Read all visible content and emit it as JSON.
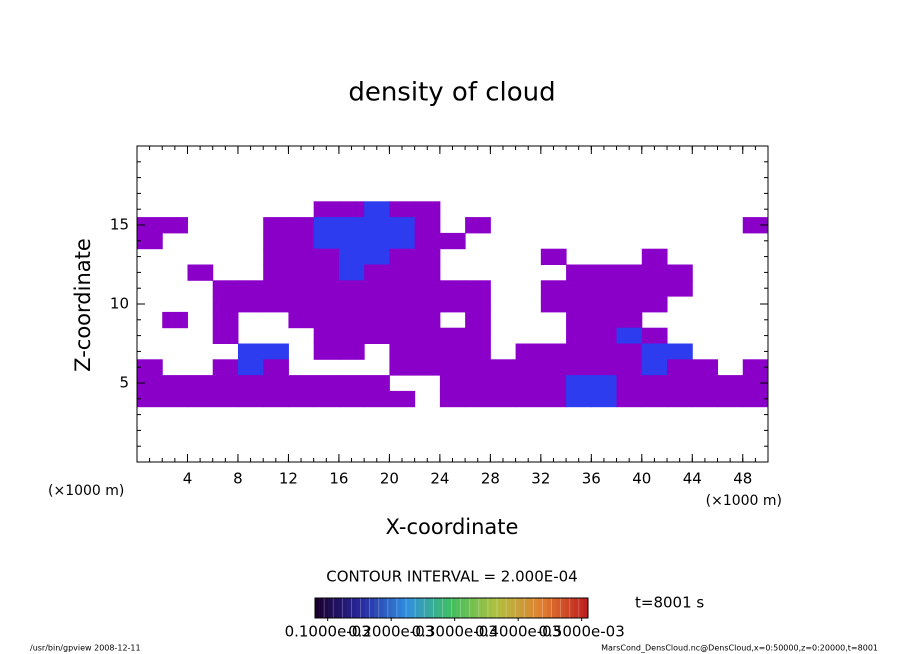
{
  "chart_data": {
    "type": "contour",
    "title": "density of cloud",
    "x_label": "X-coordinate",
    "y_label": "Z-coordinate",
    "x_unit": "(×1000 m)",
    "y_unit": "(×1000 m)",
    "contour_interval": "CONTOUR INTERVAL = 2.000E-04",
    "time_label": "t=8001 s",
    "footer_left": "/usr/bin/gpview  2008-12-11",
    "footer_right": "MarsCond_DensCloud.nc@DensCloud,x=0:50000,z=0:20000,t=8001",
    "xlim": [
      0,
      50
    ],
    "ylim": [
      0,
      20
    ],
    "xticks": [
      4,
      8,
      12,
      16,
      20,
      24,
      28,
      32,
      36,
      40,
      44,
      48
    ],
    "yticks": [
      5,
      10,
      15
    ],
    "minor_step": 1,
    "colorbar_lim": [
      8e-05,
      0.00051
    ],
    "colorbar_ticks": [
      {
        "value": 0.0001,
        "label": "0.1000e-03"
      },
      {
        "value": 0.0002,
        "label": "0.2000e-03"
      },
      {
        "value": 0.0003,
        "label": "0.3000e-03"
      },
      {
        "value": 0.0004,
        "label": "0.4000e-03"
      },
      {
        "value": 0.0005,
        "label": "0.5000e-03"
      }
    ],
    "colorbar_colors": [
      "#1a0030",
      "#2a2aa0",
      "#2f8fe0",
      "#40c060",
      "#b0c040",
      "#e08030",
      "#c02020"
    ],
    "level_colors": [
      "#8a00c8",
      "#2e3cf0"
    ],
    "field": {
      "x": [
        1,
        3,
        5,
        7,
        9,
        11,
        13,
        15,
        17,
        19,
        21,
        23,
        25,
        27,
        29,
        31,
        33,
        35,
        37,
        39,
        41,
        43,
        45,
        47,
        49
      ],
      "z": [
        16,
        15,
        14,
        13,
        12,
        11,
        10,
        9,
        8,
        7,
        6,
        5,
        4
      ],
      "values": [
        [
          0,
          0,
          0,
          0,
          0,
          0,
          0,
          0.0001,
          0.0001,
          0.0002,
          0.0001,
          0.0001,
          0,
          0,
          0,
          0,
          0,
          0,
          0,
          0,
          0,
          0,
          0,
          0,
          0
        ],
        [
          0.0001,
          0.0001,
          0,
          0,
          0,
          0.0001,
          0.0001,
          0.0002,
          0.0002,
          0.0002,
          0.0002,
          0.0001,
          0,
          0.0001,
          0,
          0,
          0,
          0,
          0,
          0,
          0,
          0,
          0,
          0,
          0.0001
        ],
        [
          0.0001,
          0,
          0,
          0,
          0,
          0.0001,
          0.0001,
          0.0002,
          0.0002,
          0.0002,
          0.0002,
          0.0001,
          0.0001,
          0,
          0,
          0,
          0,
          0,
          0,
          0,
          0,
          0,
          0,
          0,
          0
        ],
        [
          0,
          0,
          0,
          0,
          0,
          0.0001,
          0.0001,
          0.0001,
          0.0002,
          0.0002,
          0.0001,
          0.0001,
          0,
          0,
          0,
          0,
          0.0001,
          0,
          0,
          0,
          0.0001,
          0,
          0,
          0,
          0
        ],
        [
          0,
          0,
          0.0001,
          0,
          0,
          0.0001,
          0.0001,
          0.0001,
          0.0002,
          0.0001,
          0.0001,
          0.0001,
          0,
          0,
          0,
          0,
          0,
          0.0001,
          0.0001,
          0.0001,
          0.0001,
          0.0001,
          0,
          0,
          0
        ],
        [
          0,
          0,
          0,
          0.0001,
          0.0001,
          0.0001,
          0.0001,
          0.0001,
          0.0001,
          0.0001,
          0.0001,
          0.0001,
          0.0001,
          0.0001,
          0,
          0,
          0.0001,
          0.0001,
          0.0001,
          0.0001,
          0.0001,
          0.0001,
          0,
          0,
          0
        ],
        [
          0,
          0,
          0,
          0.0001,
          0.0001,
          0.0001,
          0.0001,
          0.0001,
          0.0001,
          0.0001,
          0.0001,
          0.0001,
          0.0001,
          0.0001,
          0,
          0,
          0.0001,
          0.0001,
          0.0001,
          0.0001,
          0.0001,
          0,
          0,
          0,
          0
        ],
        [
          0,
          0.0001,
          0,
          0.0001,
          0,
          0,
          0.0001,
          0.0001,
          0.0001,
          0.0001,
          0.0001,
          0.0001,
          0,
          0.0001,
          0,
          0,
          0,
          0.0001,
          0.0001,
          0.0001,
          0,
          0,
          0,
          0,
          0
        ],
        [
          0,
          0,
          0,
          0.0001,
          0,
          0,
          0,
          0.0001,
          0.0001,
          0.0001,
          0.0001,
          0.0001,
          0.0001,
          0.0001,
          0,
          0,
          0,
          0.0001,
          0.0001,
          0.0002,
          0.0001,
          0,
          0,
          0,
          0
        ],
        [
          0,
          0,
          0,
          0,
          0.0002,
          0.0002,
          0,
          0.0001,
          0.0001,
          0,
          0.0001,
          0.0001,
          0.0001,
          0.0001,
          0,
          0.0001,
          0.0001,
          0.0001,
          0.0001,
          0.0001,
          0.0002,
          0.0002,
          0,
          0,
          0
        ],
        [
          0.0001,
          0,
          0,
          0.0001,
          0.0002,
          0.0001,
          0,
          0,
          0,
          0,
          0.0001,
          0.0001,
          0.0001,
          0.0001,
          0.0001,
          0.0001,
          0.0001,
          0.0001,
          0.0001,
          0.0001,
          0.0002,
          0.0001,
          0.0001,
          0,
          0.0001
        ],
        [
          0.0001,
          0.0001,
          0.0001,
          0.0001,
          0.0001,
          0.0001,
          0.0001,
          0.0001,
          0.0001,
          0.0001,
          0,
          0,
          0.0001,
          0.0001,
          0.0001,
          0.0001,
          0.0001,
          0.0002,
          0.0002,
          0.0001,
          0.0001,
          0.0001,
          0.0001,
          0.0001,
          0.0001
        ],
        [
          0.0001,
          0.0001,
          0.0001,
          0.0001,
          0.0001,
          0.0001,
          0.0001,
          0.0001,
          0.0001,
          0.0001,
          0.0001,
          0,
          0.0001,
          0.0001,
          0.0001,
          0.0001,
          0.0001,
          0.0002,
          0.0002,
          0.0001,
          0.0001,
          0.0001,
          0.0001,
          0.0001,
          0.0001
        ]
      ]
    }
  }
}
